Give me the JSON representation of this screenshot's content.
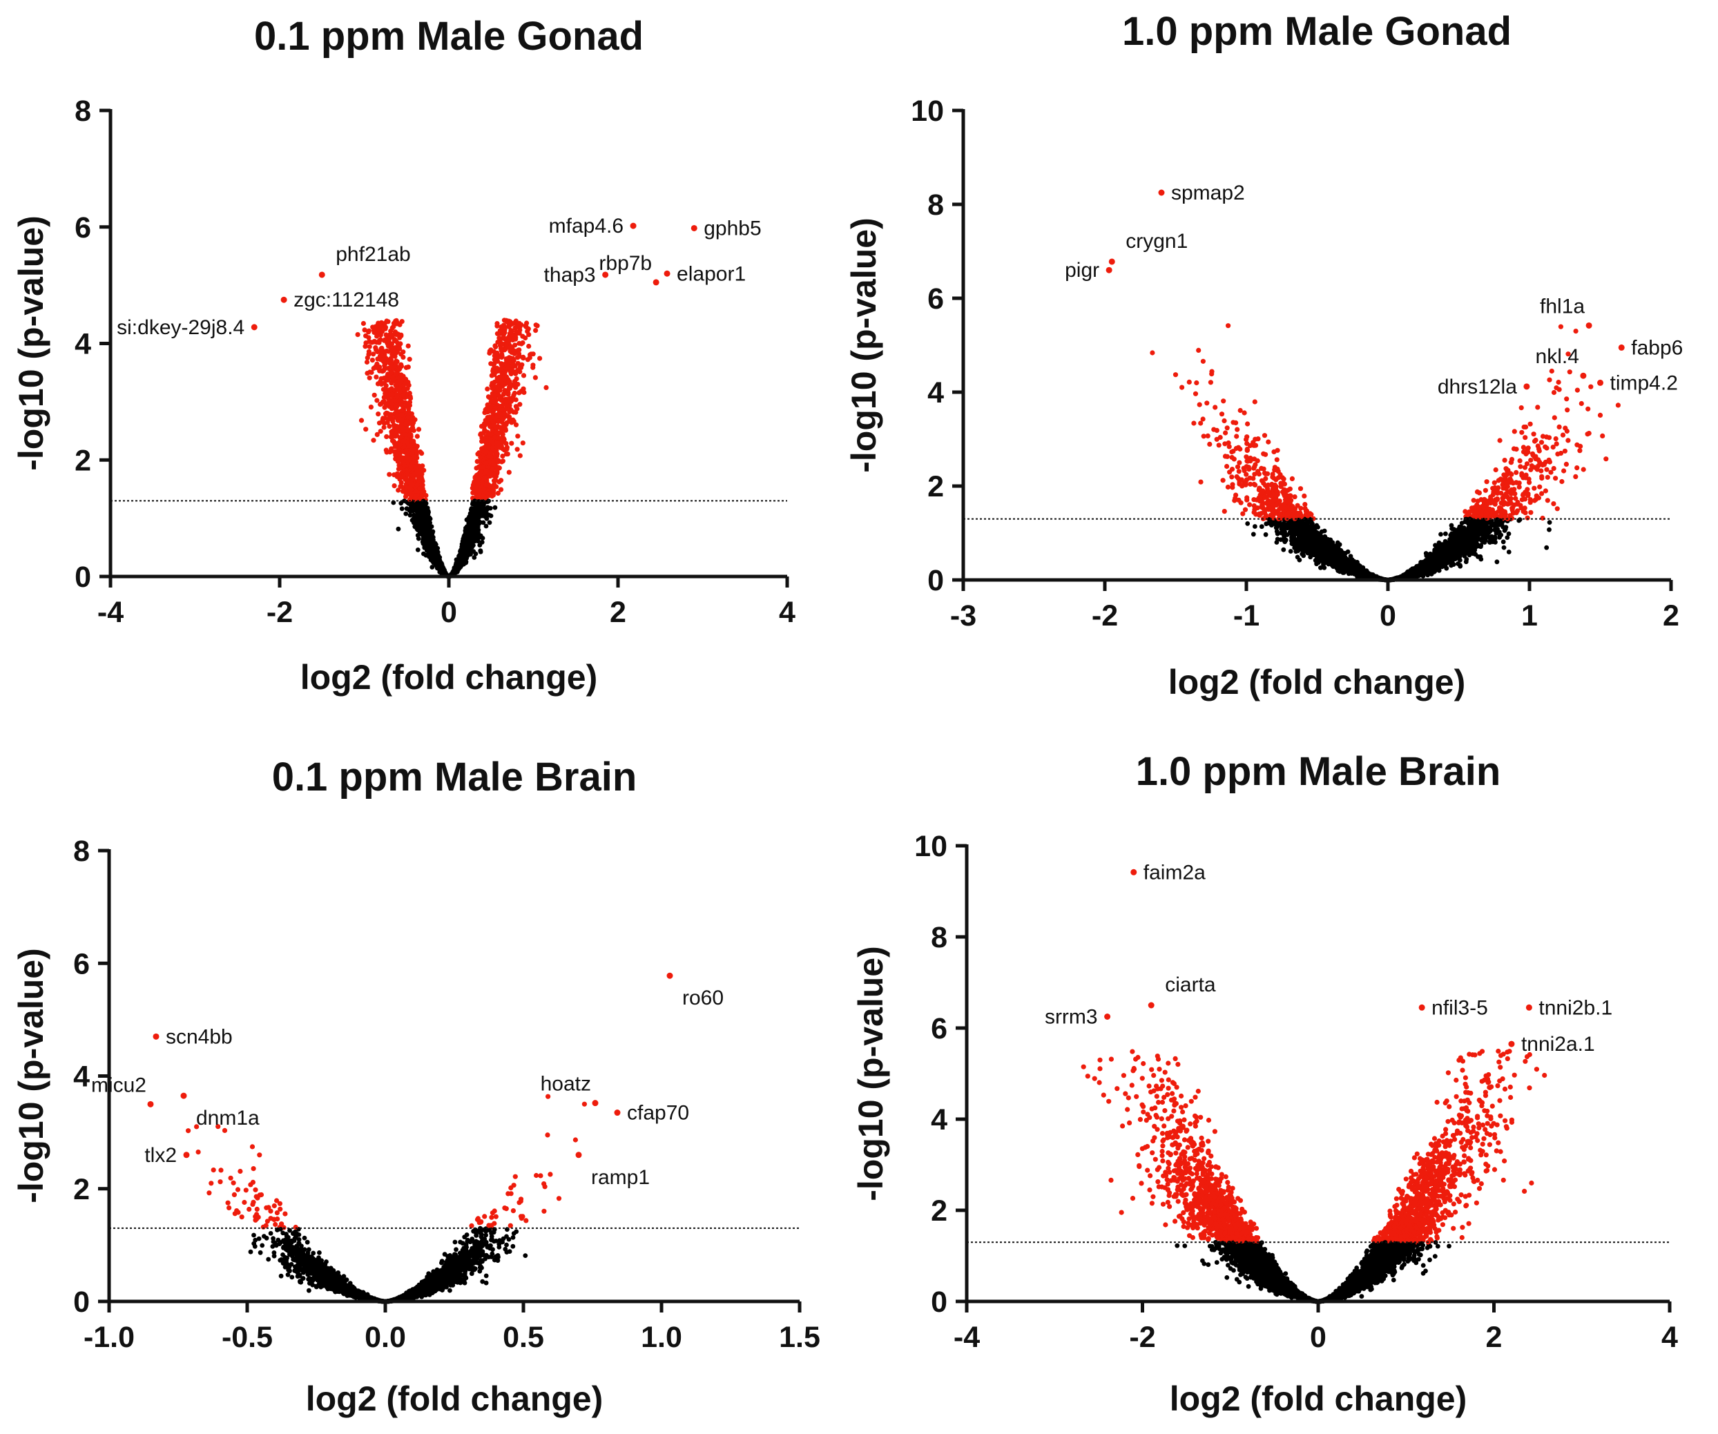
{
  "figure": {
    "colors": {
      "significant": "#ee1c0c",
      "nonsignificant": "#000000",
      "axis": "#111111"
    },
    "significance_threshold": 1.3
  },
  "chart_data": [
    {
      "type": "scatter",
      "title": "0.1 ppm Male Gonad",
      "xlabel": "log2 (fold change)",
      "ylabel": "-log10  (p-value)",
      "xlim": [
        -4,
        4
      ],
      "ylim": [
        0,
        8
      ],
      "xticks": [
        -4,
        -2,
        0,
        2,
        4
      ],
      "yticks": [
        0,
        2,
        4,
        6,
        8
      ],
      "xtick_labels": [
        "-4",
        "-2",
        "0",
        "2",
        "4"
      ],
      "ytick_labels": [
        "0",
        "2",
        "4",
        "6",
        "8"
      ],
      "threshold": 1.3,
      "cloud": {
        "n_points": 6000,
        "x_spread": 0.95,
        "steepness": 8.2,
        "significant_min": 1.3
      },
      "highlighted_points": [
        {
          "x": 2.18,
          "y": 6.02,
          "label": "mfap4.6",
          "label_side": "left"
        },
        {
          "x": 2.9,
          "y": 5.98,
          "label": "gphb5",
          "label_side": "right"
        },
        {
          "x": 2.58,
          "y": 5.2,
          "label": "elapor1",
          "label_side": "right"
        },
        {
          "x": 2.45,
          "y": 5.05,
          "label": "rbp7b",
          "label_side": "above-left"
        },
        {
          "x": 1.85,
          "y": 5.18,
          "label": "thap3",
          "label_side": "left"
        },
        {
          "x": -1.5,
          "y": 5.18,
          "label": "phf21ab",
          "label_side": "above-right"
        },
        {
          "x": -1.95,
          "y": 4.75,
          "label": "zgc:112148",
          "label_side": "right"
        },
        {
          "x": -2.3,
          "y": 4.28,
          "label": "si:dkey-29j8.4",
          "label_side": "left"
        }
      ]
    },
    {
      "type": "scatter",
      "title": "1.0 ppm Male Gonad",
      "xlabel": "log2 (fold change)",
      "ylabel": "-log10  (p-value)",
      "xlim": [
        -3,
        2
      ],
      "ylim": [
        0,
        10
      ],
      "xticks": [
        -3,
        -2,
        -1,
        0,
        1,
        2
      ],
      "yticks": [
        0,
        2,
        4,
        6,
        8,
        10
      ],
      "xtick_labels": [
        "-3",
        "-2",
        "-1",
        "0",
        "1",
        "2"
      ],
      "ytick_labels": [
        "0",
        "2",
        "4",
        "6",
        "8",
        "10"
      ],
      "threshold": 1.3,
      "cloud": {
        "n_points": 4500,
        "x_spread": 0.5,
        "steepness": 2.7,
        "significant_min": 1.3
      },
      "highlighted_points": [
        {
          "x": -1.6,
          "y": 8.25,
          "label": "spmap2",
          "label_side": "right"
        },
        {
          "x": -1.95,
          "y": 6.78,
          "label": "crygn1",
          "label_side": "above-right"
        },
        {
          "x": -1.97,
          "y": 6.6,
          "label": "pigr",
          "label_side": "left"
        },
        {
          "x": 1.42,
          "y": 5.42,
          "label": "fhl1a",
          "label_side": "above-left"
        },
        {
          "x": 1.65,
          "y": 4.95,
          "label": "fabp6",
          "label_side": "right"
        },
        {
          "x": 1.38,
          "y": 4.35,
          "label": "nkl.4",
          "label_side": "above-left"
        },
        {
          "x": 1.5,
          "y": 4.2,
          "label": "timp4.2",
          "label_side": "right"
        },
        {
          "x": 0.98,
          "y": 4.12,
          "label": "dhrs12la",
          "label_side": "left"
        }
      ]
    },
    {
      "type": "scatter",
      "title": "0.1 ppm Male Brain",
      "xlabel": "log2 (fold change)",
      "ylabel": "-log10  (p-value)",
      "xlim": [
        -1,
        1.5
      ],
      "ylim": [
        0,
        8
      ],
      "xticks": [
        -1,
        -0.5,
        0,
        0.5,
        1,
        1.5
      ],
      "yticks": [
        0,
        2,
        4,
        6,
        8
      ],
      "xtick_labels": [
        "-1.0",
        "-0.5",
        "0.0",
        "0.5",
        "1.0",
        "1.5"
      ],
      "ytick_labels": [
        "0",
        "2",
        "4",
        "6",
        "8"
      ],
      "threshold": 1.3,
      "cloud": {
        "n_points": 3200,
        "x_spread": 0.2,
        "steepness": 6.0,
        "significant_min": 1.3
      },
      "highlighted_points": [
        {
          "x": 1.03,
          "y": 5.78,
          "label": "ro60",
          "label_side": "below-right"
        },
        {
          "x": -0.83,
          "y": 4.7,
          "label": "scn4bb",
          "label_side": "right"
        },
        {
          "x": -0.85,
          "y": 3.5,
          "label": "micu2",
          "label_side": "above-left"
        },
        {
          "x": -0.73,
          "y": 3.65,
          "label": "dnm1a",
          "label_side": "below-right"
        },
        {
          "x": -0.72,
          "y": 2.6,
          "label": "tlx2",
          "label_side": "left"
        },
        {
          "x": 0.76,
          "y": 3.52,
          "label": "hoatz",
          "label_side": "above-left"
        },
        {
          "x": 0.84,
          "y": 3.35,
          "label": "cfap70",
          "label_side": "right"
        },
        {
          "x": 0.7,
          "y": 2.6,
          "label": "ramp1",
          "label_side": "below-right"
        }
      ]
    },
    {
      "type": "scatter",
      "title": "1.0 ppm Male Brain",
      "xlabel": "log2 (fold change)",
      "ylabel": "-log10  (p-value)",
      "xlim": [
        -4,
        4
      ],
      "ylim": [
        0,
        10
      ],
      "xticks": [
        -4,
        -2,
        0,
        2,
        4
      ],
      "yticks": [
        0,
        2,
        4,
        6,
        8,
        10
      ],
      "xtick_labels": [
        "-4",
        "-2",
        "0",
        "2",
        "4"
      ],
      "ytick_labels": [
        "0",
        "2",
        "4",
        "6",
        "8",
        "10"
      ],
      "threshold": 1.3,
      "cloud": {
        "n_points": 7000,
        "x_spread": 0.85,
        "steepness": 1.8,
        "significant_min": 1.3
      },
      "highlighted_points": [
        {
          "x": -2.1,
          "y": 9.42,
          "label": "faim2a",
          "label_side": "right"
        },
        {
          "x": -1.9,
          "y": 6.5,
          "label": "ciarta",
          "label_side": "above-right"
        },
        {
          "x": -2.4,
          "y": 6.25,
          "label": "srrm3",
          "label_side": "left"
        },
        {
          "x": 1.18,
          "y": 6.45,
          "label": "nfil3-5",
          "label_side": "right"
        },
        {
          "x": 2.4,
          "y": 6.45,
          "label": "tnni2b.1",
          "label_side": "right"
        },
        {
          "x": 2.2,
          "y": 5.65,
          "label": "tnni2a.1",
          "label_side": "right"
        }
      ]
    }
  ]
}
